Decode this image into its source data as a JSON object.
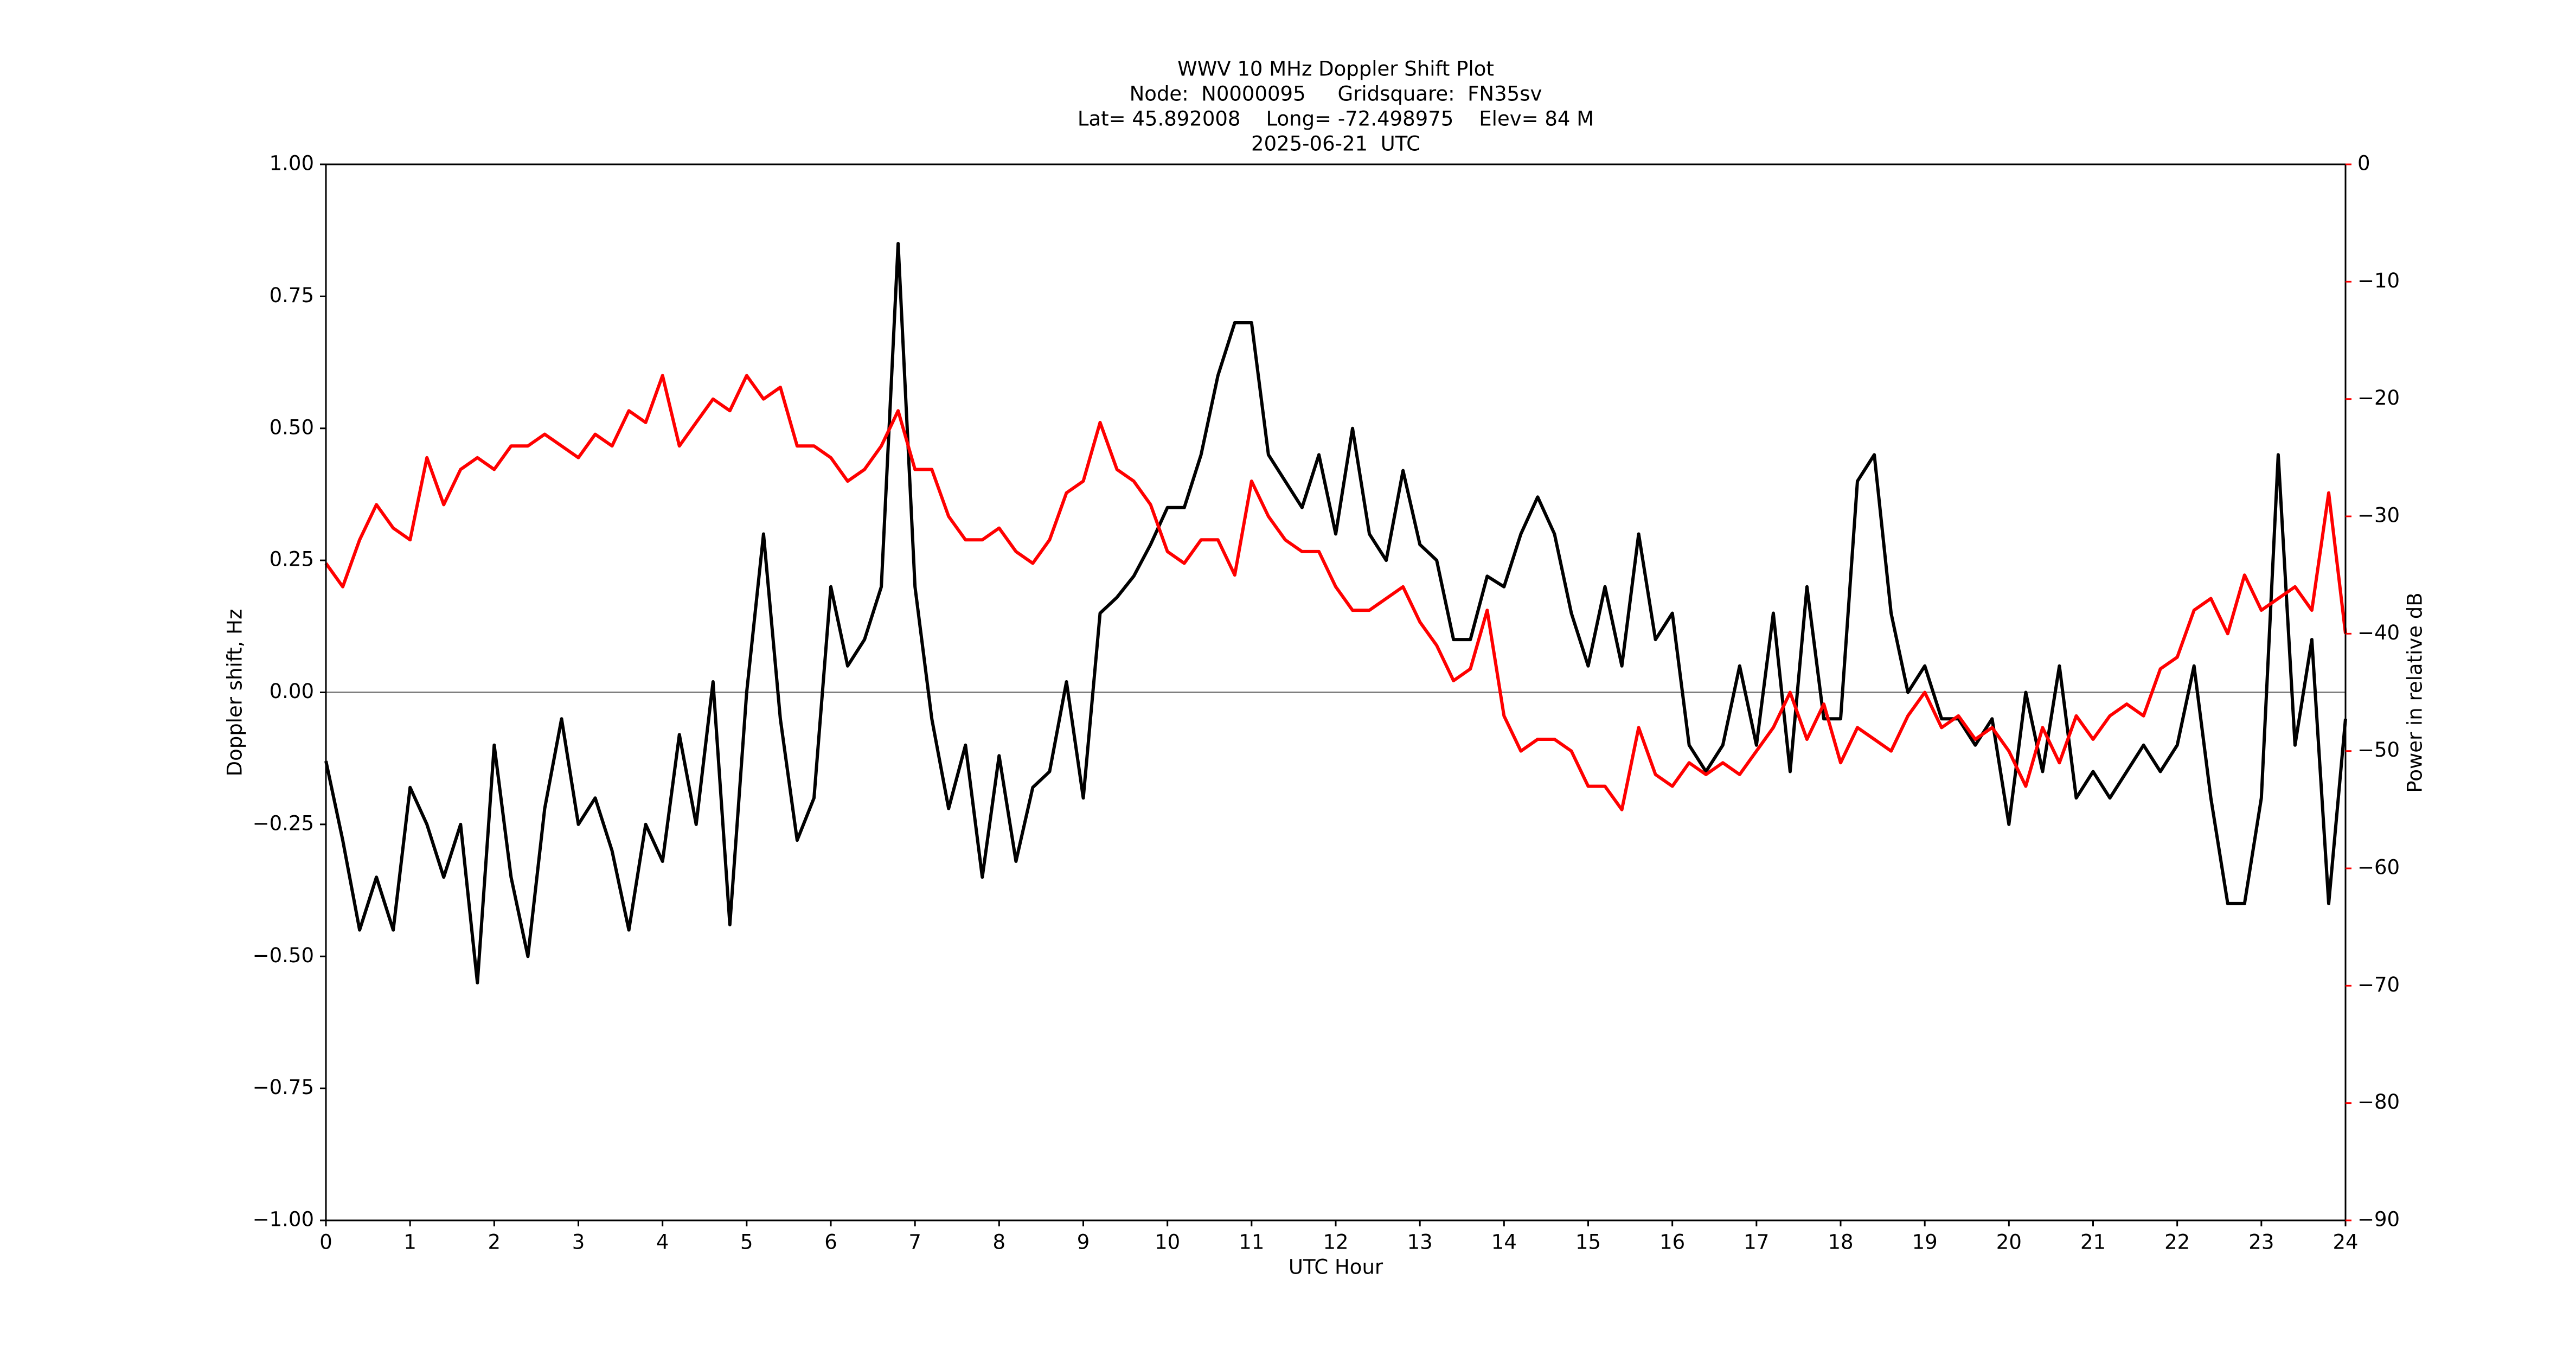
{
  "chart_data": {
    "type": "line",
    "title": [
      "WWV 10 MHz Doppler Shift Plot",
      "Node:  N0000095     Gridsquare:  FN35sv",
      "Lat= 45.892008    Long= -72.498975    Elev= 84 M",
      "2025-06-21  UTC"
    ],
    "x_label": "UTC Hour",
    "y_label": "Doppler shift, Hz",
    "y2_label": "Power in relative dB",
    "x": [
      0,
      0.2,
      0.4,
      0.6,
      0.8,
      1,
      1.2,
      1.4,
      1.6,
      1.8,
      2,
      2.2,
      2.4,
      2.6,
      2.8,
      3,
      3.2,
      3.4,
      3.6,
      3.8,
      4,
      4.2,
      4.4,
      4.6,
      4.8,
      5,
      5.2,
      5.4,
      5.6,
      5.8,
      6,
      6.2,
      6.4,
      6.6,
      6.8,
      7,
      7.2,
      7.4,
      7.6,
      7.8,
      8,
      8.2,
      8.4,
      8.6,
      8.8,
      9,
      9.2,
      9.4,
      9.6,
      9.8,
      10,
      10.2,
      10.4,
      10.6,
      10.8,
      11,
      11.2,
      11.4,
      11.6,
      11.8,
      12,
      12.2,
      12.4,
      12.6,
      12.8,
      13,
      13.2,
      13.4,
      13.6,
      13.8,
      14,
      14.2,
      14.4,
      14.6,
      14.8,
      15,
      15.2,
      15.4,
      15.6,
      15.8,
      16,
      16.2,
      16.4,
      16.6,
      16.8,
      17,
      17.2,
      17.4,
      17.6,
      17.8,
      18,
      18.2,
      18.4,
      18.6,
      18.8,
      19,
      19.2,
      19.4,
      19.6,
      19.8,
      20,
      20.2,
      20.4,
      20.6,
      20.8,
      21,
      21.2,
      21.4,
      21.6,
      21.8,
      22,
      22.2,
      22.4,
      22.6,
      22.8,
      23,
      23.2,
      23.4,
      23.6,
      23.8,
      24
    ],
    "series": [
      {
        "color": "#000000",
        "axis": "y",
        "values": [
          -0.13,
          -0.28,
          -0.45,
          -0.35,
          -0.45,
          -0.18,
          -0.25,
          -0.35,
          -0.25,
          -0.55,
          -0.1,
          -0.35,
          -0.5,
          -0.22,
          -0.05,
          -0.25,
          -0.2,
          -0.3,
          -0.45,
          -0.25,
          -0.32,
          -0.08,
          -0.25,
          0.02,
          -0.44,
          0.0,
          0.3,
          -0.05,
          -0.28,
          -0.2,
          0.2,
          0.05,
          0.1,
          0.2,
          0.85,
          0.2,
          -0.05,
          -0.22,
          -0.1,
          -0.35,
          -0.12,
          -0.32,
          -0.18,
          -0.15,
          0.02,
          -0.2,
          0.15,
          0.18,
          0.22,
          0.28,
          0.35,
          0.35,
          0.45,
          0.6,
          0.7,
          0.7,
          0.45,
          0.4,
          0.35,
          0.45,
          0.3,
          0.5,
          0.3,
          0.25,
          0.42,
          0.28,
          0.25,
          0.1,
          0.1,
          0.22,
          0.2,
          0.3,
          0.37,
          0.3,
          0.15,
          0.05,
          0.2,
          0.05,
          0.3,
          0.1,
          0.15,
          -0.1,
          -0.15,
          -0.1,
          0.05,
          -0.1,
          0.15,
          -0.15,
          0.2,
          -0.05,
          -0.05,
          0.4,
          0.45,
          0.15,
          0.0,
          0.05,
          -0.05,
          -0.05,
          -0.1,
          -0.05,
          -0.25,
          0.0,
          -0.15,
          0.05,
          -0.2,
          -0.15,
          -0.2,
          -0.15,
          -0.1,
          -0.15,
          -0.1,
          0.05,
          -0.2,
          -0.4,
          -0.4,
          -0.2,
          0.45,
          -0.1,
          0.1,
          -0.4,
          -0.05
        ]
      },
      {
        "color": "#ff0000",
        "axis": "y2",
        "values": [
          -34,
          -36,
          -32,
          -29,
          -31,
          -32,
          -25,
          -29,
          -26,
          -25,
          -26,
          -24,
          -24,
          -23,
          -24,
          -25,
          -23,
          -24,
          -21,
          -22,
          -18,
          -24,
          -22,
          -20,
          -21,
          -18,
          -20,
          -19,
          -24,
          -24,
          -25,
          -27,
          -26,
          -24,
          -21,
          -26,
          -26,
          -30,
          -32,
          -32,
          -31,
          -33,
          -34,
          -32,
          -28,
          -27,
          -22,
          -26,
          -27,
          -29,
          -33,
          -34,
          -32,
          -32,
          -35,
          -27,
          -30,
          -32,
          -33,
          -33,
          -36,
          -38,
          -38,
          -37,
          -36,
          -39,
          -41,
          -44,
          -43,
          -38,
          -47,
          -50,
          -49,
          -49,
          -50,
          -53,
          -53,
          -55,
          -48,
          -52,
          -53,
          -51,
          -52,
          -51,
          -52,
          -50,
          -48,
          -45,
          -49,
          -46,
          -51,
          -48,
          -49,
          -50,
          -47,
          -45,
          -48,
          -47,
          -49,
          -48,
          -50,
          -53,
          -48,
          -51,
          -47,
          -49,
          -47,
          -46,
          -47,
          -43,
          -42,
          -38,
          -37,
          -40,
          -35,
          -38,
          -37,
          -36,
          -38,
          -28,
          -40
        ]
      }
    ],
    "xlim": [
      0,
      24
    ],
    "xticks": [
      0,
      1,
      2,
      3,
      4,
      5,
      6,
      7,
      8,
      9,
      10,
      11,
      12,
      13,
      14,
      15,
      16,
      17,
      18,
      19,
      20,
      21,
      22,
      23,
      24
    ],
    "ylim": [
      -1,
      1
    ],
    "yticks": [
      {
        "value": -1,
        "label": "−1.00"
      },
      {
        "value": -0.75,
        "label": "−0.75"
      },
      {
        "value": -0.5,
        "label": "−0.50"
      },
      {
        "value": -0.25,
        "label": "−0.25"
      },
      {
        "value": 0,
        "label": "0.00"
      },
      {
        "value": 0.25,
        "label": "0.25"
      },
      {
        "value": 0.5,
        "label": "0.50"
      },
      {
        "value": 0.75,
        "label": "0.75"
      },
      {
        "value": 1,
        "label": "1.00"
      }
    ],
    "y2lim": [
      -90,
      0
    ],
    "y2ticks": [
      {
        "value": -90,
        "label": "−90"
      },
      {
        "value": -80,
        "label": "−80"
      },
      {
        "value": -70,
        "label": "−70"
      },
      {
        "value": -60,
        "label": "−60"
      },
      {
        "value": -50,
        "label": "−50"
      },
      {
        "value": -40,
        "label": "−40"
      },
      {
        "value": -30,
        "label": "−30"
      },
      {
        "value": -20,
        "label": "−20"
      },
      {
        "value": -10,
        "label": "−10"
      },
      0
    ],
    "y2_color": "#ff0000",
    "reference_line": 0,
    "reference_color": "#808080"
  }
}
